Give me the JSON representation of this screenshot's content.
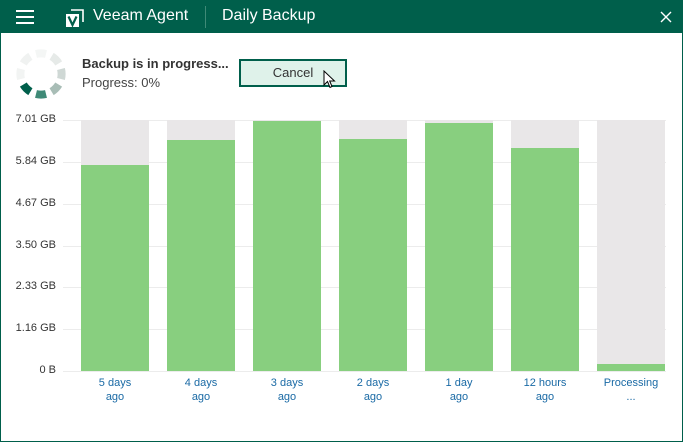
{
  "titlebar": {
    "app_name": "Veeam Agent",
    "job_name": "Daily Backup",
    "menu_icon": "hamburger-menu-icon",
    "logo_icon": "veeam-logo-icon",
    "close_icon": "close-icon"
  },
  "status": {
    "title": "Backup is in progress...",
    "progress_text": "Progress: 0%",
    "progress_percent": 0,
    "spinner_icon": "loading-spinner-icon"
  },
  "actions": {
    "cancel_label": "Cancel"
  },
  "colors": {
    "titlebar": "#005f4b",
    "bar_fill": "#88cf7f",
    "bar_background": "#e9e7e8",
    "xlabel": "#1a6aa5",
    "button_bg": "#dff2ea"
  },
  "chart_data": {
    "type": "bar",
    "title": "",
    "xlabel": "",
    "ylabel": "",
    "ylim": [
      0,
      7.01
    ],
    "unit": "GB",
    "grid": true,
    "y_ticks": [
      "7.01 GB",
      "5.84 GB",
      "4.67 GB",
      "3.50 GB",
      "2.33 GB",
      "1.16 GB",
      "0 B"
    ],
    "categories": [
      "5 days ago",
      "4 days ago",
      "3 days ago",
      "2 days ago",
      "1 day ago",
      "12 hours ago",
      "Processing ..."
    ],
    "category_lines": [
      [
        "5 days",
        "ago"
      ],
      [
        "4 days",
        "ago"
      ],
      [
        "3 days",
        "ago"
      ],
      [
        "2 days",
        "ago"
      ],
      [
        "1 day",
        "ago"
      ],
      [
        "12 hours",
        "ago"
      ],
      [
        "Processing",
        "..."
      ]
    ],
    "values": [
      5.75,
      6.45,
      6.98,
      6.48,
      6.93,
      6.23,
      0.2
    ]
  }
}
